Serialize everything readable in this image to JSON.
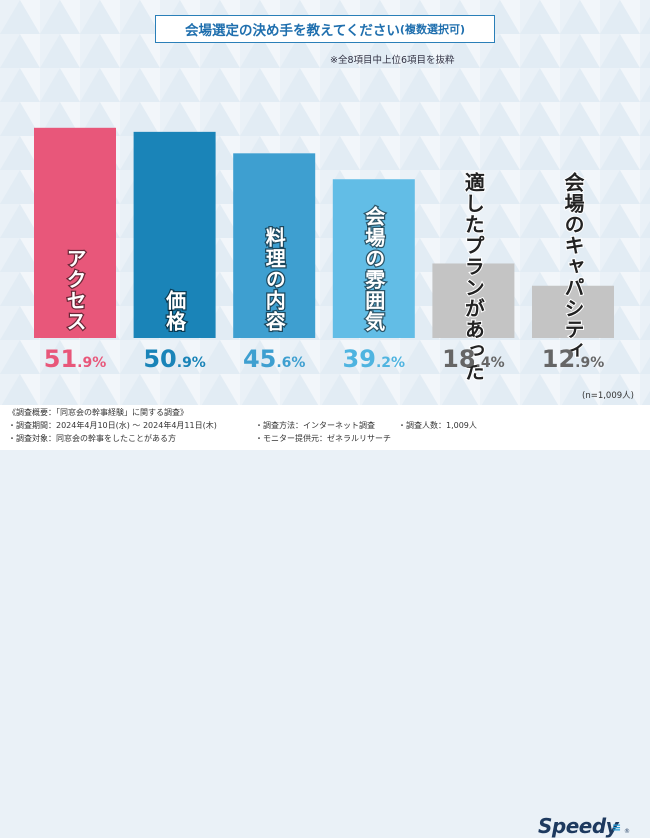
{
  "title": "会場選定の決め手を教えてください",
  "title_sub": "(複数選択可)",
  "note": "※全8項目中上位6項目を抜粋",
  "n_label": "(n=1,009人)",
  "footer": {
    "summary": "《調査概要：「同窓会の幹事経験」に関する調査》",
    "period": "・調査期間：2024年4月10日(水) ～ 2024年4月11日(木)",
    "target": "・調査対象：同窓会の幹事をしたことがある方",
    "method": "・調査方法：インターネット調査",
    "provider": "・モニター提供元：ゼネラルリサーチ",
    "count": "・調査人数：1,009人"
  },
  "logo": "Speedy",
  "colors": {
    "bar1": "#e8577a",
    "bar2": "#1a84b8",
    "bar3": "#3e9fd0",
    "bar4": "#62bde6",
    "bar_gray": "#c4c4c4",
    "pct1": "#e8577a",
    "pct2": "#1a84b8",
    "pct3": "#3e9fd0",
    "pct4": "#4fb4e0",
    "pct_gray": "#666666"
  },
  "chart_data": {
    "type": "bar",
    "title": "会場選定の決め手を教えてください(複数選択可)",
    "categories": [
      "アクセス",
      "価格",
      "料理の内容",
      "会場の雰囲気",
      "適したプランがあった",
      "会場のキャパシティ"
    ],
    "values": [
      51.9,
      50.9,
      45.6,
      39.2,
      18.4,
      12.9
    ],
    "value_int": [
      "51",
      "50",
      "45",
      "39",
      "18",
      "12"
    ],
    "value_dec": [
      ".9",
      ".9",
      ".6",
      ".2",
      ".4",
      ".9"
    ],
    "unit": "%",
    "label_position": [
      "inside",
      "inside",
      "inside",
      "inside",
      "above",
      "above"
    ],
    "ylim": [
      0,
      60
    ]
  }
}
